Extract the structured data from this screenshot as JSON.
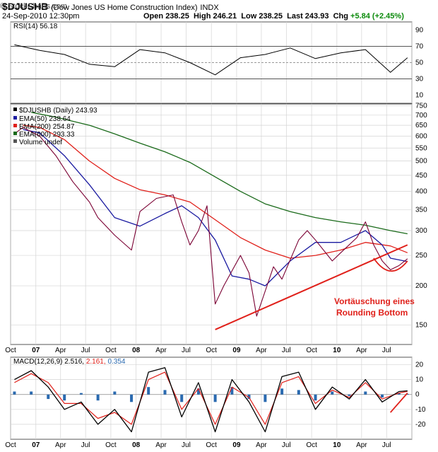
{
  "header": {
    "symbol": "$DJUSHB",
    "description": "(Dow Jones US Home Construction Index)",
    "exchange": "INDX",
    "datetime": "24-Sep-2010 12:30pm",
    "logo": "© StockCharts.com",
    "quote": {
      "open_label": "Open",
      "open": "238.25",
      "high_label": "High",
      "high": "246.21",
      "low_label": "Low",
      "low": "238.25",
      "last_label": "Last",
      "last": "243.93",
      "chg_label": "Chg",
      "chg": "+5.84 (+2.45%)"
    }
  },
  "colors": {
    "price": "#7a0033",
    "ema50": "#1a1aa0",
    "ema200": "#e0201a",
    "ema600": "#1a6a1a",
    "annotation": "#e0201a",
    "macd": "#000000",
    "signal": "#e0201a",
    "histogram": "#2a6ab0"
  },
  "chart_data": [
    {
      "type": "line",
      "title": "RSI(14) 56.18",
      "series_name": "RSI(14)",
      "last_value": "56.18",
      "ylim": [
        0,
        100
      ],
      "yticks": [
        "90",
        "70",
        "50",
        "30",
        "10"
      ],
      "reference_lines": [
        70,
        50,
        30
      ],
      "x": [
        "2006-10",
        "2007-01",
        "2007-04",
        "2007-07",
        "2007-10",
        "2008-01",
        "2008-04",
        "2008-07",
        "2008-10",
        "2009-01",
        "2009-04",
        "2009-07",
        "2009-10",
        "2010-01",
        "2010-04",
        "2010-07",
        "2010-09"
      ],
      "values": [
        72,
        65,
        60,
        48,
        45,
        66,
        62,
        50,
        35,
        56,
        60,
        68,
        55,
        62,
        66,
        38,
        56
      ]
    },
    {
      "type": "line",
      "title": "$DJUSHB (Daily) 243.93",
      "y_scale": "log",
      "ylim": [
        130,
        760
      ],
      "yticks": [
        "750",
        "700",
        "650",
        "600",
        "550",
        "500",
        "450",
        "400",
        "350",
        "300",
        "250",
        "200",
        "150"
      ],
      "xticks": [
        "Oct",
        "07",
        "Apr",
        "Jul",
        "Oct",
        "08",
        "Apr",
        "Jul",
        "Oct",
        "09",
        "Apr",
        "Jul",
        "Oct",
        "10",
        "Apr",
        "Jul"
      ],
      "legend": [
        "$DJUSHB (Daily) 243.93",
        "EMA(50) 238.64",
        "EMA(200) 254.87",
        "EMA(600) 293.33",
        "Volume undef"
      ],
      "legend_placement": "top-left",
      "series": [
        {
          "name": "$DJUSHB (Daily)",
          "last": "243.93",
          "x": [
            "2006-10",
            "2006-11",
            "2007-01",
            "2007-03",
            "2007-05",
            "2007-07",
            "2007-08",
            "2007-10",
            "2007-12",
            "2008-01",
            "2008-03",
            "2008-05",
            "2008-06",
            "2008-07",
            "2008-08",
            "2008-09",
            "2008-10",
            "2008-11",
            "2009-01",
            "2009-02",
            "2009-03",
            "2009-05",
            "2009-06",
            "2009-08",
            "2009-09",
            "2009-10",
            "2009-12",
            "2010-01",
            "2010-03",
            "2010-04",
            "2010-05",
            "2010-06",
            "2010-07",
            "2010-08",
            "2010-09"
          ],
          "values": [
            610,
            640,
            600,
            520,
            430,
            370,
            330,
            290,
            260,
            345,
            380,
            390,
            320,
            270,
            300,
            360,
            175,
            200,
            250,
            220,
            160,
            230,
            210,
            280,
            300,
            280,
            240,
            255,
            285,
            320,
            270,
            240,
            225,
            232,
            244
          ]
        },
        {
          "name": "EMA(50)",
          "last": "238.64",
          "x": [
            "2006-11",
            "2007-01",
            "2007-04",
            "2007-07",
            "2007-10",
            "2008-01",
            "2008-04",
            "2008-06",
            "2008-08",
            "2008-10",
            "2008-12",
            "2009-02",
            "2009-04",
            "2009-07",
            "2009-10",
            "2010-01",
            "2010-04",
            "2010-06",
            "2010-07",
            "2010-09"
          ],
          "values": [
            630,
            615,
            520,
            420,
            330,
            310,
            340,
            360,
            330,
            280,
            215,
            210,
            200,
            240,
            275,
            275,
            300,
            270,
            245,
            239
          ]
        },
        {
          "name": "EMA(200)",
          "last": "254.87",
          "x": [
            "2006-11",
            "2007-01",
            "2007-04",
            "2007-07",
            "2007-10",
            "2008-01",
            "2008-04",
            "2008-07",
            "2008-10",
            "2009-01",
            "2009-04",
            "2009-07",
            "2009-10",
            "2010-01",
            "2010-04",
            "2010-07",
            "2010-09"
          ],
          "values": [
            650,
            640,
            585,
            500,
            440,
            405,
            390,
            370,
            325,
            285,
            260,
            245,
            250,
            260,
            275,
            268,
            255
          ]
        },
        {
          "name": "EMA(600)",
          "last": "293.33",
          "x": [
            "2006-12",
            "2007-03",
            "2007-07",
            "2007-10",
            "2008-01",
            "2008-04",
            "2008-07",
            "2008-10",
            "2009-01",
            "2009-04",
            "2009-07",
            "2009-10",
            "2010-01",
            "2010-04",
            "2010-07",
            "2010-09"
          ],
          "values": [
            715,
            690,
            650,
            610,
            570,
            535,
            495,
            445,
            400,
            365,
            345,
            330,
            320,
            312,
            300,
            293
          ]
        }
      ],
      "annotations": {
        "text_line1": "Vortäuschung eines",
        "text_line2": "Rounding Bottom",
        "trendline_from": [
          "2008-10",
          145
        ],
        "trendline_to": [
          "2010-09",
          270
        ]
      }
    },
    {
      "type": "line",
      "title": "MACD(12,26,9) 2.516, 2.161, 0.354",
      "label": "MACD(12,26,9)",
      "values_text": {
        "macd": "2.516",
        "signal": "2.161",
        "hist": "0.354"
      },
      "ylim": [
        -30,
        25
      ],
      "yticks": [
        "20",
        "10",
        "0",
        "-10",
        "-20"
      ],
      "xticks": [
        "Oct",
        "07",
        "Apr",
        "Jul",
        "Oct",
        "08",
        "Apr",
        "Jul",
        "Oct",
        "09",
        "Apr",
        "Jul",
        "Oct",
        "10",
        "Apr",
        "Jul"
      ],
      "series": [
        {
          "name": "MACD",
          "x": [
            "2006-10",
            "2006-12",
            "2007-02",
            "2007-04",
            "2007-06",
            "2007-08",
            "2007-10",
            "2007-12",
            "2008-02",
            "2008-04",
            "2008-06",
            "2008-08",
            "2008-10",
            "2008-12",
            "2009-02",
            "2009-04",
            "2009-06",
            "2009-08",
            "2009-10",
            "2009-12",
            "2010-02",
            "2010-04",
            "2010-06",
            "2010-08",
            "2010-09"
          ],
          "values": [
            10,
            16,
            5,
            -10,
            -5,
            -20,
            -10,
            -25,
            15,
            18,
            -15,
            8,
            -25,
            10,
            -5,
            -25,
            12,
            15,
            -10,
            5,
            -3,
            10,
            -5,
            2,
            2.5
          ]
        },
        {
          "name": "Signal",
          "x": [
            "2006-10",
            "2006-12",
            "2007-02",
            "2007-04",
            "2007-06",
            "2007-08",
            "2007-10",
            "2007-12",
            "2008-02",
            "2008-04",
            "2008-06",
            "2008-08",
            "2008-10",
            "2008-12",
            "2009-02",
            "2009-04",
            "2009-06",
            "2009-08",
            "2009-10",
            "2009-12",
            "2010-02",
            "2010-04",
            "2010-06",
            "2010-08",
            "2010-09"
          ],
          "values": [
            8,
            14,
            8,
            -6,
            -6,
            -16,
            -12,
            -20,
            10,
            15,
            -10,
            4,
            -20,
            5,
            -2,
            -20,
            8,
            12,
            -6,
            3,
            -2,
            8,
            -3,
            1,
            2.1
          ]
        }
      ]
    }
  ]
}
